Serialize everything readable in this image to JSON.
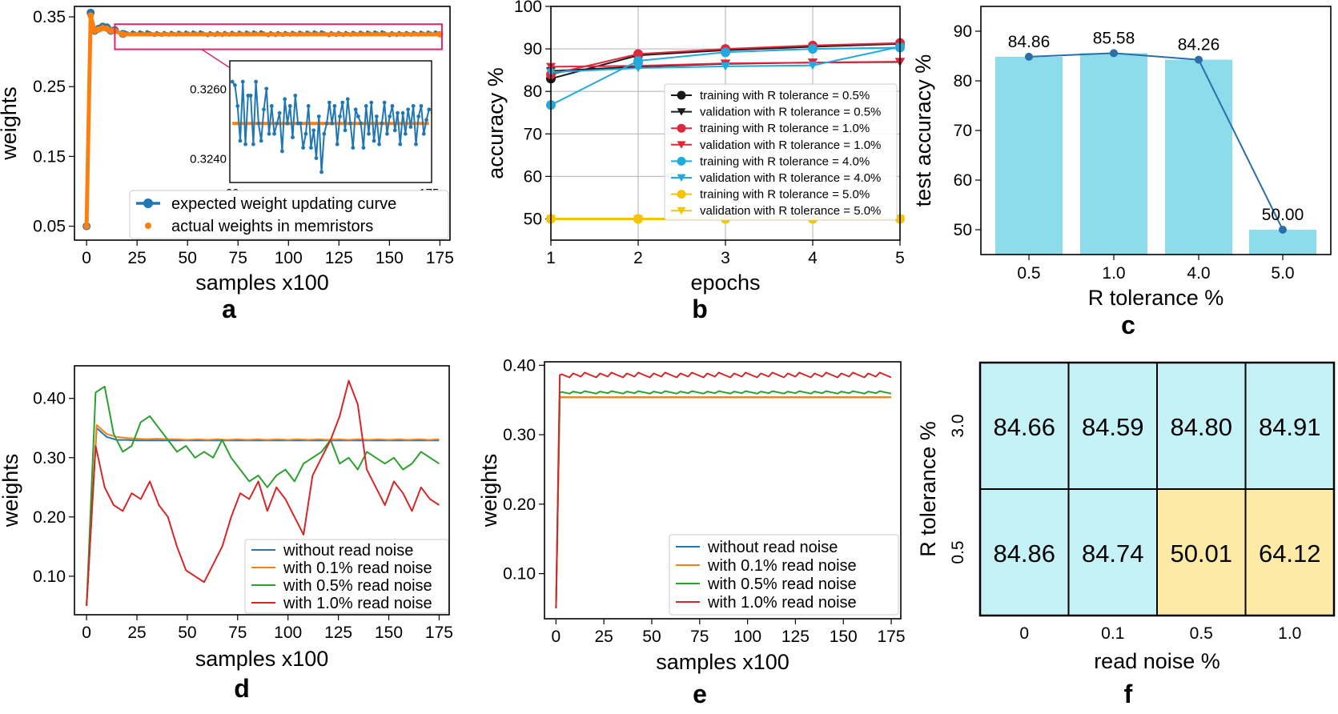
{
  "chart_data": [
    {
      "panel": "a",
      "type": "line",
      "xlabel": "samples x100",
      "ylabel": "weights",
      "xlim": [
        -6,
        180
      ],
      "ylim": [
        0.03,
        0.365
      ],
      "xticks": [
        0,
        25,
        50,
        75,
        100,
        125,
        150,
        175
      ],
      "yticks": [
        0.05,
        0.15,
        0.25,
        0.35
      ],
      "ytick_labels": [
        "0.05",
        "0.15",
        "0.25",
        "0.35"
      ],
      "grid": false,
      "legend": "lower-right",
      "series": [
        {
          "name": "expected weight updating curve",
          "color": "#1f77b4",
          "marker": "circle",
          "x": [
            0,
            2,
            4,
            6,
            8,
            10,
            12,
            14,
            18,
            175
          ],
          "y": [
            0.05,
            0.356,
            0.33,
            0.333,
            0.336,
            0.335,
            0.33,
            0.331,
            0.3255,
            0.3255
          ]
        },
        {
          "name": "actual weights in memristors",
          "color": "#ff7f0e",
          "marker": "dot",
          "x": [
            0,
            2,
            4,
            6,
            8,
            10,
            12,
            14,
            18,
            175
          ],
          "y": [
            0.05,
            0.352,
            0.33,
            0.332,
            0.334,
            0.333,
            0.33,
            0.33,
            0.325,
            0.325
          ]
        }
      ],
      "inset": {
        "xlim": [
          18,
          177
        ],
        "ylim": [
          0.3233,
          0.3268
        ],
        "xtick_labels": [
          "20",
          "175"
        ],
        "yticks": [
          0.324,
          0.326
        ],
        "ytick_labels": [
          "0.3240",
          "0.3260"
        ],
        "expected_y": [
          0.3262,
          0.3261,
          0.3255,
          0.3245,
          0.3262,
          0.3244,
          0.3258,
          0.3258,
          0.3244,
          0.3262,
          0.325,
          0.3245,
          0.3254,
          0.326,
          0.3247,
          0.3255,
          0.3247,
          0.325,
          0.3253,
          0.3242,
          0.3257,
          0.325,
          0.3255,
          0.3246,
          0.3258,
          0.325,
          0.325,
          0.3243,
          0.3247,
          0.3255,
          0.3243,
          0.3248,
          0.324,
          0.3252,
          0.3236,
          0.3247,
          0.325,
          0.3256,
          0.325,
          0.3255,
          0.3244,
          0.3252,
          0.3256,
          0.3248,
          0.3257,
          0.325,
          0.3243,
          0.3254,
          0.3252,
          0.325,
          0.3243,
          0.3255,
          0.3247,
          0.3256,
          0.3245,
          0.3252,
          0.3244,
          0.325,
          0.3256,
          0.3247,
          0.3252,
          0.3255,
          0.3248,
          0.3253,
          0.3244,
          0.3253,
          0.3247,
          0.3254,
          0.3249,
          0.3255,
          0.3244,
          0.3252,
          0.3255,
          0.3247,
          0.3251,
          0.3254
        ],
        "actual_y": 0.325
      }
    },
    {
      "panel": "b",
      "type": "line",
      "xlabel": "epochs",
      "ylabel": "accuracy %",
      "xlim": [
        1,
        5
      ],
      "ylim": [
        45,
        100
      ],
      "xticks": [
        1,
        2,
        3,
        4,
        5
      ],
      "yticks": [
        50,
        60,
        70,
        80,
        90,
        100
      ],
      "grid": true,
      "legend": "center-right",
      "series": [
        {
          "name": "training with R tolerance = 0.5%",
          "color": "#1a1a1a",
          "marker": "circle",
          "y": [
            83.0,
            88.5,
            89.7,
            90.5,
            91.2
          ]
        },
        {
          "name": "validation with R tolerance = 0.5%",
          "color": "#1a1a1a",
          "marker": "triangle-down",
          "y": [
            84.8,
            85.8,
            86.5,
            86.8,
            86.9
          ]
        },
        {
          "name": "training with R tolerance = 1.0%",
          "color": "#e0283c",
          "marker": "circle",
          "y": [
            84.0,
            88.8,
            90.0,
            90.8,
            91.4
          ]
        },
        {
          "name": "validation with R tolerance = 1.0%",
          "color": "#e0283c",
          "marker": "triangle-down",
          "y": [
            85.8,
            86.0,
            86.6,
            86.8,
            87.0
          ]
        },
        {
          "name": "training with R tolerance = 4.0%",
          "color": "#22aadd",
          "marker": "circle",
          "y": [
            76.8,
            87.2,
            89.2,
            90.0,
            90.3
          ]
        },
        {
          "name": "validation with R tolerance = 4.0%",
          "color": "#22aadd",
          "marker": "triangle-down",
          "y": [
            84.5,
            85.5,
            85.9,
            86.1,
            90.5
          ]
        },
        {
          "name": "training with R tolerance = 5.0%",
          "color": "#f5c400",
          "marker": "circle",
          "y": [
            50.0,
            50.0,
            50.0,
            50.0,
            50.0
          ]
        },
        {
          "name": "validation with R tolerance = 5.0%",
          "color": "#f5c400",
          "marker": "triangle-down",
          "y": [
            50.0,
            50.0,
            50.0,
            50.0,
            50.0
          ]
        }
      ]
    },
    {
      "panel": "c",
      "type": "bar",
      "xlabel": "R tolerance %",
      "ylabel": "test accuracy %",
      "categories": [
        "0.5",
        "1.0",
        "4.0",
        "5.0"
      ],
      "values": [
        84.86,
        85.58,
        84.26,
        50.0
      ],
      "value_labels": [
        "84.86",
        "85.58",
        "84.26",
        "50.00"
      ],
      "ylim": [
        45,
        95
      ],
      "yticks": [
        50,
        60,
        70,
        80,
        90
      ],
      "grid": false,
      "bar_color": "#8ddcec",
      "line_color": "#2a6fa8"
    },
    {
      "panel": "d",
      "type": "line",
      "xlabel": "samples x100",
      "ylabel": "weights",
      "xlim": [
        -6,
        180
      ],
      "ylim": [
        0.035,
        0.455
      ],
      "xticks": [
        0,
        25,
        50,
        75,
        100,
        125,
        150,
        175
      ],
      "yticks": [
        0.1,
        0.2,
        0.3,
        0.4
      ],
      "ytick_labels": [
        "0.10",
        "0.20",
        "0.30",
        "0.40"
      ],
      "grid": false,
      "legend": "lower-right",
      "series": [
        {
          "name": "without read noise",
          "color": "#1f77b4",
          "y": [
            0.05,
            0.35,
            0.335,
            0.33,
            0.33,
            0.329,
            0.329,
            0.329,
            0.329,
            0.329,
            0.329,
            0.329,
            0.329,
            0.329,
            0.329,
            0.329,
            0.329,
            0.329,
            0.329,
            0.329,
            0.329,
            0.329,
            0.329,
            0.329,
            0.329,
            0.329,
            0.329,
            0.329,
            0.329,
            0.329,
            0.329,
            0.329,
            0.329,
            0.329,
            0.329,
            0.329
          ]
        },
        {
          "name": "with 0.1% read noise",
          "color": "#ff7f0e",
          "y": [
            0.05,
            0.355,
            0.34,
            0.335,
            0.333,
            0.332,
            0.331,
            0.332,
            0.331,
            0.331,
            0.33,
            0.331,
            0.33,
            0.331,
            0.33,
            0.331,
            0.33,
            0.331,
            0.33,
            0.331,
            0.33,
            0.331,
            0.33,
            0.331,
            0.33,
            0.331,
            0.33,
            0.331,
            0.33,
            0.331,
            0.33,
            0.331,
            0.33,
            0.331,
            0.33,
            0.331
          ]
        },
        {
          "name": "with 0.5% read noise",
          "color": "#2ca02c",
          "y": [
            0.05,
            0.41,
            0.42,
            0.34,
            0.31,
            0.32,
            0.36,
            0.37,
            0.35,
            0.33,
            0.31,
            0.32,
            0.3,
            0.31,
            0.3,
            0.33,
            0.3,
            0.28,
            0.26,
            0.27,
            0.25,
            0.27,
            0.28,
            0.26,
            0.29,
            0.3,
            0.31,
            0.33,
            0.29,
            0.3,
            0.28,
            0.31,
            0.3,
            0.29,
            0.3,
            0.28,
            0.29,
            0.31,
            0.3,
            0.29
          ]
        },
        {
          "name": "with 1.0% read noise",
          "color": "#d62728",
          "y": [
            0.05,
            0.32,
            0.25,
            0.22,
            0.21,
            0.24,
            0.23,
            0.26,
            0.22,
            0.2,
            0.15,
            0.11,
            0.1,
            0.09,
            0.12,
            0.15,
            0.2,
            0.24,
            0.23,
            0.26,
            0.21,
            0.25,
            0.23,
            0.2,
            0.17,
            0.27,
            0.3,
            0.33,
            0.37,
            0.43,
            0.39,
            0.28,
            0.25,
            0.22,
            0.26,
            0.24,
            0.21,
            0.25,
            0.23,
            0.22
          ]
        }
      ]
    },
    {
      "panel": "e",
      "type": "line",
      "xlabel": "samples x100",
      "ylabel": "weights",
      "xlim": [
        -6,
        180
      ],
      "ylim": [
        0.035,
        0.405
      ],
      "xticks": [
        0,
        25,
        50,
        75,
        100,
        125,
        150,
        175
      ],
      "yticks": [
        0.1,
        0.2,
        0.3,
        0.4
      ],
      "ytick_labels": [
        "0.10",
        "0.20",
        "0.30",
        "0.40"
      ],
      "grid": false,
      "legend": "lower-right",
      "series": [
        {
          "name": "without read noise",
          "color": "#1f77b4",
          "level": 0.354
        },
        {
          "name": "with 0.1% read noise",
          "color": "#ff7f0e",
          "level": 0.354
        },
        {
          "name": "with 0.5% read noise",
          "color": "#2ca02c",
          "level": 0.361
        },
        {
          "name": "with 1.0% read noise",
          "color": "#d62728",
          "level": 0.386
        }
      ]
    },
    {
      "panel": "f",
      "type": "heatmap",
      "xlabel": "read noise %",
      "ylabel": "R tolerance %",
      "x_categories": [
        "0",
        "0.1",
        "0.5",
        "1.0"
      ],
      "y_categories": [
        "3.0",
        "0.5"
      ],
      "values": [
        [
          "84.66",
          "84.59",
          "84.80",
          "84.91"
        ],
        [
          "84.86",
          "84.74",
          "50.01",
          "64.12"
        ]
      ],
      "cell_colors": [
        [
          "#c4f2f7",
          "#c4f2f7",
          "#c4f2f7",
          "#c4f2f7"
        ],
        [
          "#c4f2f7",
          "#c4f2f7",
          "#fdeaa6",
          "#fdeaa6"
        ]
      ]
    }
  ],
  "panel_labels": [
    "a",
    "b",
    "c",
    "d",
    "e",
    "f"
  ]
}
